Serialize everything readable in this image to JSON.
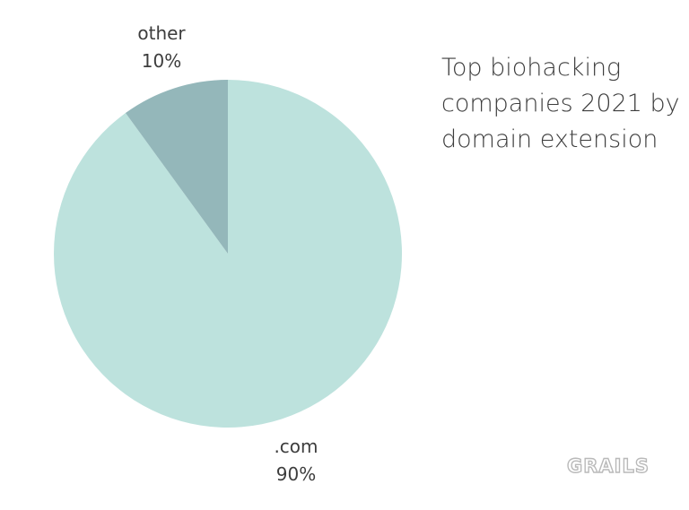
{
  "chart_data": {
    "type": "pie",
    "title": "Top biohacking companies 2021 by domain extension",
    "title_lines": [
      "Top biohacking",
      "companies 2021 by",
      "domain extension"
    ],
    "slices": [
      {
        "label": ".com",
        "value": 90,
        "display": "90%",
        "color": "#bde2dd"
      },
      {
        "label": "other",
        "value": 10,
        "display": "10%",
        "color": "#94b7ba"
      }
    ],
    "legend": "none"
  },
  "watermark": "GRAILS",
  "colors": {
    "text": "#3d3d3d",
    "watermark_outline": "#b9b9b9"
  }
}
